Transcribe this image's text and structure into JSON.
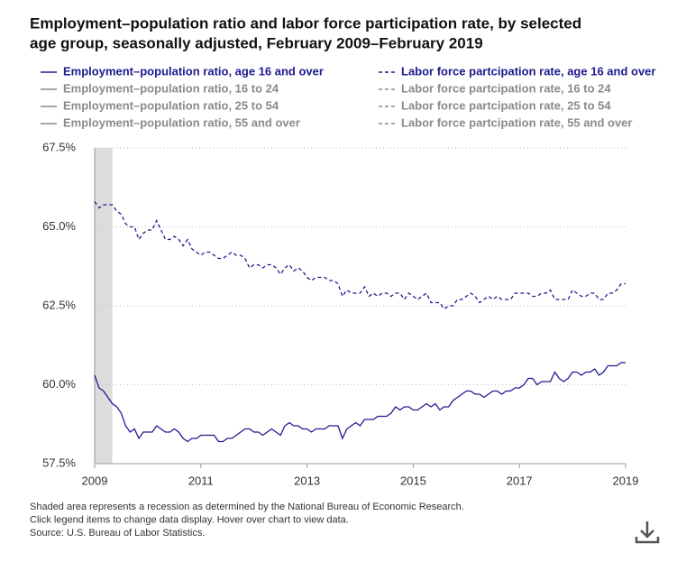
{
  "chart_data": {
    "type": "line",
    "title": [
      "Employment–population ratio and labor force participation rate, by selected",
      "age group, seasonally adjusted, February 2009–February 2019"
    ],
    "x": [
      2009,
      2009.083,
      2009.167,
      2009.25,
      2009.333,
      2009.417,
      2009.5,
      2009.583,
      2009.667,
      2009.75,
      2009.833,
      2009.917,
      2010,
      2010.083,
      2010.167,
      2010.25,
      2010.333,
      2010.417,
      2010.5,
      2010.583,
      2010.667,
      2010.75,
      2010.833,
      2010.917,
      2011,
      2011.083,
      2011.167,
      2011.25,
      2011.333,
      2011.417,
      2011.5,
      2011.583,
      2011.667,
      2011.75,
      2011.833,
      2011.917,
      2012,
      2012.083,
      2012.167,
      2012.25,
      2012.333,
      2012.417,
      2012.5,
      2012.583,
      2012.667,
      2012.75,
      2012.833,
      2012.917,
      2013,
      2013.083,
      2013.167,
      2013.25,
      2013.333,
      2013.417,
      2013.5,
      2013.583,
      2013.667,
      2013.75,
      2013.833,
      2013.917,
      2014,
      2014.083,
      2014.167,
      2014.25,
      2014.333,
      2014.417,
      2014.5,
      2014.583,
      2014.667,
      2014.75,
      2014.833,
      2014.917,
      2015,
      2015.083,
      2015.167,
      2015.25,
      2015.333,
      2015.417,
      2015.5,
      2015.583,
      2015.667,
      2015.75,
      2015.833,
      2015.917,
      2016,
      2016.083,
      2016.167,
      2016.25,
      2016.333,
      2016.417,
      2016.5,
      2016.583,
      2016.667,
      2016.75,
      2016.833,
      2016.917,
      2017,
      2017.083,
      2017.167,
      2017.25,
      2017.333,
      2017.417,
      2017.5,
      2017.583,
      2017.667,
      2017.75,
      2017.833,
      2017.917,
      2018,
      2018.083,
      2018.167,
      2018.25,
      2018.333,
      2018.417,
      2018.5,
      2018.583,
      2018.667,
      2018.75,
      2018.833,
      2018.917,
      2019
    ],
    "series": [
      {
        "name": "Employment–population ratio, age 16 and over",
        "color": "#1f1a8f",
        "dash": false,
        "values": [
          60.3,
          59.9,
          59.8,
          59.6,
          59.4,
          59.3,
          59.1,
          58.7,
          58.5,
          58.6,
          58.3,
          58.5,
          58.5,
          58.5,
          58.7,
          58.6,
          58.5,
          58.5,
          58.6,
          58.5,
          58.3,
          58.2,
          58.3,
          58.3,
          58.4,
          58.4,
          58.4,
          58.4,
          58.2,
          58.2,
          58.3,
          58.3,
          58.4,
          58.5,
          58.6,
          58.6,
          58.5,
          58.5,
          58.4,
          58.5,
          58.6,
          58.5,
          58.4,
          58.7,
          58.8,
          58.7,
          58.7,
          58.6,
          58.6,
          58.5,
          58.6,
          58.6,
          58.6,
          58.7,
          58.7,
          58.7,
          58.3,
          58.6,
          58.7,
          58.8,
          58.7,
          58.9,
          58.9,
          58.9,
          59.0,
          59.0,
          59.0,
          59.1,
          59.3,
          59.2,
          59.3,
          59.3,
          59.2,
          59.2,
          59.3,
          59.4,
          59.3,
          59.4,
          59.2,
          59.3,
          59.3,
          59.5,
          59.6,
          59.7,
          59.8,
          59.8,
          59.7,
          59.7,
          59.6,
          59.7,
          59.8,
          59.8,
          59.7,
          59.8,
          59.8,
          59.9,
          59.9,
          60.0,
          60.2,
          60.2,
          60.0,
          60.1,
          60.1,
          60.1,
          60.4,
          60.2,
          60.1,
          60.2,
          60.4,
          60.4,
          60.3,
          60.4,
          60.4,
          60.5,
          60.3,
          60.4,
          60.6,
          60.6,
          60.6,
          60.7,
          60.7
        ]
      },
      {
        "name": "Labor force partcipation rate, age 16 and over",
        "color": "#1f1a8f",
        "dash": true,
        "values": [
          65.8,
          65.6,
          65.7,
          65.7,
          65.7,
          65.5,
          65.4,
          65.1,
          65.0,
          65.0,
          64.6,
          64.8,
          64.9,
          64.9,
          65.2,
          64.9,
          64.6,
          64.6,
          64.7,
          64.6,
          64.4,
          64.6,
          64.3,
          64.2,
          64.1,
          64.2,
          64.2,
          64.1,
          64.0,
          64.0,
          64.1,
          64.2,
          64.1,
          64.1,
          64.0,
          63.7,
          63.8,
          63.8,
          63.7,
          63.8,
          63.8,
          63.7,
          63.5,
          63.7,
          63.8,
          63.6,
          63.7,
          63.6,
          63.4,
          63.3,
          63.4,
          63.4,
          63.4,
          63.3,
          63.3,
          63.2,
          62.8,
          63.0,
          62.9,
          62.9,
          62.9,
          63.1,
          62.8,
          62.9,
          62.8,
          62.9,
          62.9,
          62.8,
          62.9,
          62.9,
          62.7,
          62.9,
          62.8,
          62.7,
          62.8,
          62.9,
          62.6,
          62.6,
          62.6,
          62.4,
          62.5,
          62.5,
          62.7,
          62.7,
          62.8,
          62.9,
          62.8,
          62.6,
          62.7,
          62.8,
          62.7,
          62.8,
          62.7,
          62.7,
          62.7,
          62.9,
          62.9,
          62.9,
          62.9,
          62.8,
          62.8,
          62.9,
          62.9,
          63.0,
          62.7,
          62.7,
          62.7,
          62.7,
          63.0,
          62.9,
          62.8,
          62.8,
          62.9,
          62.9,
          62.7,
          62.7,
          62.9,
          62.9,
          63.0,
          63.2,
          63.2
        ]
      }
    ],
    "inactive_series": [
      {
        "name": "Employment–population ratio, 16 to 24",
        "dash": false
      },
      {
        "name": "Employment–population ratio, 25 to 54",
        "dash": false
      },
      {
        "name": "Employment–population ratio, 55 and over",
        "dash": false
      },
      {
        "name": "Labor force partcipation rate, 16 to 24",
        "dash": true
      },
      {
        "name": "Labor force partcipation rate, 25 to 54",
        "dash": true
      },
      {
        "name": "Labor force partcipation rate, 55 and over",
        "dash": true
      }
    ],
    "inactive_color": "#8a8a8a",
    "shaded_range": [
      2009,
      2009.333
    ],
    "xlim": [
      2009,
      2019
    ],
    "xticks": [
      2009,
      2011,
      2013,
      2015,
      2017,
      2019
    ],
    "ylim": [
      57.5,
      67.5
    ],
    "yticks": [
      {
        "value": 57.5,
        "label": "57.5%"
      },
      {
        "value": 60,
        "label": "60.0%"
      },
      {
        "value": 62.5,
        "label": "62.5%"
      },
      {
        "value": 65,
        "label": "65.0%"
      },
      {
        "value": 67.5,
        "label": "67.5%"
      }
    ],
    "grid": true,
    "notes": [
      "Shaded area represents a recession as determined by the National Bureau of Economic Research.",
      "Click legend items to change data display. Hover over chart to view data.",
      "Source: U.S. Bureau of Labor Statistics."
    ]
  }
}
